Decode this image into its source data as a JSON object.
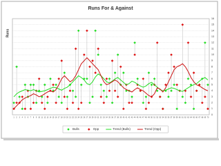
{
  "chart_data": {
    "type": "line",
    "title": "Runs For & Against",
    "y_label": "Runs",
    "categories": [
      "1",
      "2",
      "3",
      "4",
      "5",
      "6",
      "7",
      "8",
      "9",
      "10",
      "11",
      "12",
      "13",
      "14",
      "15",
      "16",
      "17",
      "18",
      "19",
      "20",
      "21",
      "22",
      "23",
      "24",
      "25",
      "26",
      "27",
      "28",
      "29",
      "30",
      "31",
      "32",
      "33",
      "34",
      "35",
      "36",
      "37",
      "38",
      "39",
      "40",
      "41",
      "42",
      "43",
      "44",
      "45",
      "46",
      "47",
      "48",
      "49",
      "50",
      "51",
      "52",
      "53",
      "54",
      "55",
      "56",
      "57",
      "58",
      "59",
      "60",
      "61",
      "62",
      "63",
      "64",
      "65",
      "66",
      "67",
      "68",
      "69",
      "70"
    ],
    "ylim": [
      0,
      16
    ],
    "yticks": [
      0,
      1,
      2,
      3,
      4,
      5,
      6,
      7,
      8,
      9,
      10,
      11,
      12,
      13,
      14,
      15,
      16
    ],
    "grid": true,
    "series": [
      {
        "name": "Bulls",
        "color": "#22dd22",
        "marker": "diamond",
        "values": [
          2,
          8,
          3,
          1,
          5,
          3,
          5,
          5,
          2,
          4,
          3,
          5,
          2,
          6,
          4,
          5,
          3,
          2,
          7,
          3,
          5,
          4,
          3,
          14,
          5,
          6,
          6,
          2,
          3,
          14,
          10,
          5,
          4,
          3,
          6,
          2,
          7,
          10,
          5,
          7,
          4,
          4,
          3,
          12,
          6,
          4,
          2,
          3,
          7,
          5,
          6,
          4,
          3,
          1,
          4,
          3,
          4,
          5,
          1,
          4,
          3,
          2,
          6,
          5,
          1,
          4,
          5,
          6,
          12,
          5
        ]
      },
      {
        "name": "Opp",
        "color": "#dd1111",
        "marker": "diamond",
        "values": [
          1,
          2,
          2,
          3,
          1,
          4,
          1,
          2,
          4,
          6,
          2,
          1,
          3,
          4,
          5,
          2,
          6,
          9,
          3,
          1,
          4,
          2,
          11,
          1,
          2,
          10,
          14,
          8,
          9,
          7,
          11,
          3,
          2,
          6,
          4,
          9,
          4,
          3,
          8,
          1,
          5,
          2,
          2,
          10,
          5,
          4,
          6,
          1,
          2,
          3,
          5,
          12,
          3,
          1,
          5,
          7,
          10,
          8,
          5,
          4,
          15,
          4,
          12,
          3,
          7,
          4,
          5,
          2,
          3,
          1
        ]
      },
      {
        "name": "Trend (Bulls)",
        "color": "#22dd22",
        "marker": "line",
        "values": [
          3,
          3.5,
          3.8,
          4,
          4.2,
          4.1,
          4,
          4.2,
          4,
          3.8,
          3.9,
          4,
          4.2,
          4.4,
          4.6,
          4.5,
          4.3,
          4.1,
          4.4,
          4.6,
          5,
          5.5,
          6,
          6.5,
          6.2,
          5.8,
          5.2,
          5,
          5.5,
          6.3,
          6.8,
          6.5,
          6,
          5.5,
          5.3,
          5.6,
          6,
          6.2,
          5.8,
          5.4,
          5,
          5.2,
          5.6,
          5.4,
          5.1,
          4.8,
          4.6,
          4.8,
          5.2,
          5.4,
          5,
          4.6,
          4.2,
          4,
          4.1,
          4.3,
          4.5,
          4.4,
          4.2,
          4,
          3.9,
          4.2,
          4.5,
          4.8,
          5,
          5.2,
          5.6,
          6,
          6.2,
          5.8
        ]
      },
      {
        "name": "Trend (Opp)",
        "color": "#cc1111",
        "marker": "line",
        "values": [
          1,
          1.5,
          2,
          2.5,
          2.8,
          3,
          3.2,
          3.5,
          3.3,
          3,
          3.2,
          3.5,
          3.8,
          4,
          3.8,
          4.2,
          5,
          6,
          6.5,
          6,
          5.5,
          5.8,
          6.5,
          7.5,
          8.5,
          9,
          9.5,
          9,
          8.5,
          8,
          7.5,
          6.5,
          5.5,
          5,
          5.2,
          5.5,
          5.8,
          5.5,
          5,
          4.5,
          4.2,
          4,
          3.8,
          4.2,
          4.5,
          4.2,
          4,
          3.6,
          3.2,
          3,
          3.5,
          4.5,
          4.3,
          3.8,
          4.5,
          5.5,
          6.5,
          7.5,
          8,
          8.2,
          8.5,
          8,
          7.2,
          6.2,
          5.5,
          5,
          4.8,
          4.5,
          4.2,
          4
        ]
      }
    ]
  }
}
